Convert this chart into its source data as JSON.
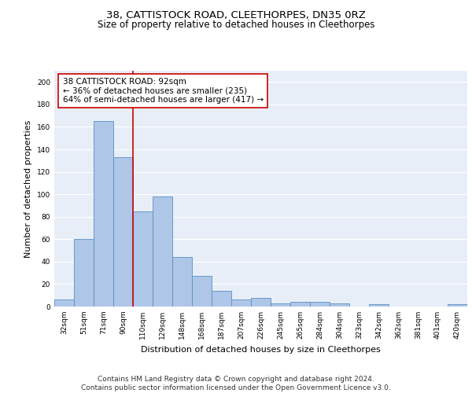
{
  "title_line1": "38, CATTISTOCK ROAD, CLEETHORPES, DN35 0RZ",
  "title_line2": "Size of property relative to detached houses in Cleethorpes",
  "xlabel": "Distribution of detached houses by size in Cleethorpes",
  "ylabel": "Number of detached properties",
  "categories": [
    "32sqm",
    "51sqm",
    "71sqm",
    "90sqm",
    "110sqm",
    "129sqm",
    "148sqm",
    "168sqm",
    "187sqm",
    "207sqm",
    "226sqm",
    "245sqm",
    "265sqm",
    "284sqm",
    "304sqm",
    "323sqm",
    "342sqm",
    "362sqm",
    "381sqm",
    "401sqm",
    "420sqm"
  ],
  "values": [
    6,
    60,
    165,
    133,
    85,
    98,
    44,
    27,
    14,
    6,
    8,
    3,
    4,
    4,
    3,
    0,
    2,
    0,
    0,
    0,
    2
  ],
  "bar_color": "#aec6e8",
  "bar_edge_color": "#5a8fc2",
  "vline_x": 3.5,
  "vline_color": "#cc0000",
  "annotation_text": "38 CATTISTOCK ROAD: 92sqm\n← 36% of detached houses are smaller (235)\n64% of semi-detached houses are larger (417) →",
  "annotation_box_color": "#ffffff",
  "annotation_box_edge_color": "#cc0000",
  "ylim": [
    0,
    210
  ],
  "yticks": [
    0,
    20,
    40,
    60,
    80,
    100,
    120,
    140,
    160,
    180,
    200
  ],
  "footnote": "Contains HM Land Registry data © Crown copyright and database right 2024.\nContains public sector information licensed under the Open Government Licence v3.0.",
  "background_color": "#e8eef8",
  "grid_color": "#ffffff",
  "title_fontsize": 9.5,
  "subtitle_fontsize": 8.5,
  "axis_label_fontsize": 8,
  "tick_fontsize": 6.5,
  "annotation_fontsize": 7.5,
  "footnote_fontsize": 6.5
}
